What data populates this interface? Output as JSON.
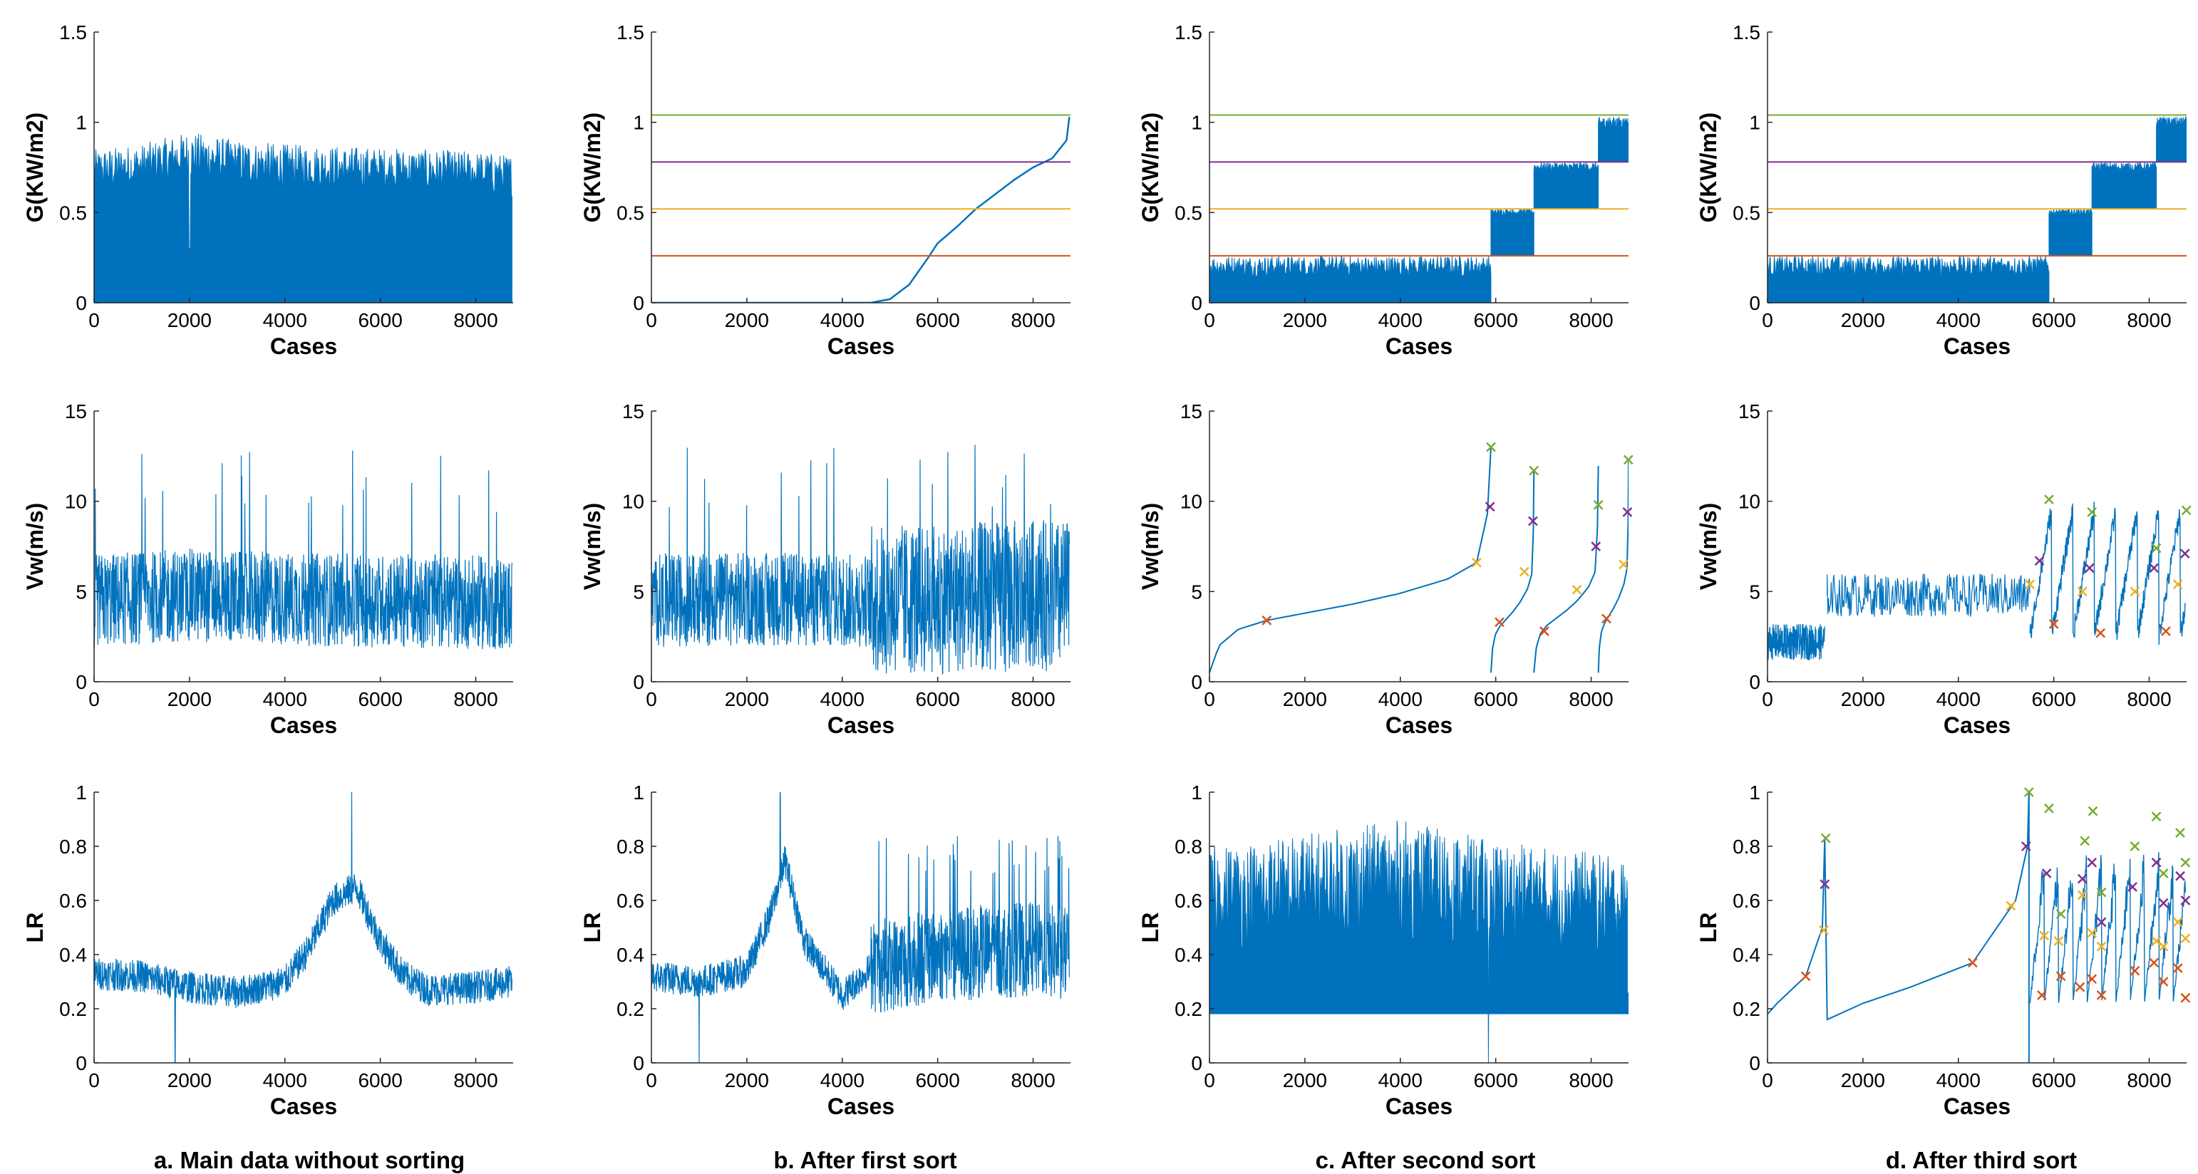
{
  "captions": [
    "a. Main data without sorting",
    "b. After first sort",
    "c. After second sort",
    "d. After third sort"
  ],
  "colors": {
    "series": "#0072BD",
    "red": "#D95319",
    "yellow": "#EDB120",
    "purple": "#7E2F8E",
    "green": "#77AC30",
    "axis": "#262626"
  },
  "chart_data": [
    {
      "type": "bar",
      "panel": "a",
      "row": 1,
      "xlabel": "Cases",
      "ylabel": "G(KW/m2)",
      "xlim": [
        0,
        8784
      ],
      "ylim": [
        0,
        1.5
      ],
      "xticks": [
        0,
        2000,
        4000,
        6000,
        8000
      ],
      "yticks": [
        0,
        0.5,
        1,
        1.5
      ],
      "series": [
        {
          "x": [
            0,
            1000,
            2000,
            3000,
            4000,
            5000,
            6000,
            7000,
            8000,
            8760
          ],
          "values": [
            0.85,
            0.88,
            0.95,
            0.9,
            0.88,
            0.87,
            0.86,
            0.85,
            0.84,
            0.82
          ]
        }
      ],
      "annotations": "dense daily bars from 0 up to the plotted envelope; dip near case 2000"
    },
    {
      "type": "line",
      "panel": "b",
      "row": 1,
      "xlabel": "Cases",
      "ylabel": "G(KW/m2)",
      "xlim": [
        0,
        8784
      ],
      "ylim": [
        0,
        1.5
      ],
      "xticks": [
        0,
        2000,
        4000,
        6000,
        8000
      ],
      "yticks": [
        0,
        0.5,
        1,
        1.5
      ],
      "series": [
        {
          "x": [
            0,
            4600,
            5000,
            5400,
            5800,
            6000,
            6400,
            6800,
            7200,
            7600,
            8000,
            8400,
            8700,
            8760
          ],
          "values": [
            0,
            0,
            0.02,
            0.1,
            0.25,
            0.33,
            0.42,
            0.52,
            0.6,
            0.68,
            0.75,
            0.8,
            0.9,
            1.03
          ]
        }
      ],
      "thresholds": [
        0.26,
        0.52,
        0.78,
        1.04
      ]
    },
    {
      "type": "bar",
      "panel": "c",
      "row": 1,
      "xlabel": "Cases",
      "ylabel": "G(KW/m2)",
      "xlim": [
        0,
        8784
      ],
      "ylim": [
        0,
        1.5
      ],
      "xticks": [
        0,
        2000,
        4000,
        6000,
        8000
      ],
      "yticks": [
        0,
        0.5,
        1,
        1.5
      ],
      "groups": [
        {
          "from": 0,
          "to": 5900,
          "low": 0,
          "high": 0.26
        },
        {
          "from": 5900,
          "to": 6800,
          "low": 0.26,
          "high": 0.52
        },
        {
          "from": 6800,
          "to": 8150,
          "low": 0.52,
          "high": 0.78
        },
        {
          "from": 8150,
          "to": 8784,
          "low": 0.78,
          "high": 1.03
        }
      ],
      "thresholds": [
        0.26,
        0.52,
        0.78,
        1.04
      ]
    },
    {
      "type": "bar",
      "panel": "d",
      "row": 1,
      "xlabel": "Cases",
      "ylabel": "G(KW/m2)",
      "xlim": [
        0,
        8784
      ],
      "ylim": [
        0,
        1.5
      ],
      "xticks": [
        0,
        2000,
        4000,
        6000,
        8000
      ],
      "yticks": [
        0,
        0.5,
        1,
        1.5
      ],
      "groups": [
        {
          "from": 0,
          "to": 5900,
          "low": 0,
          "high": 0.26
        },
        {
          "from": 5900,
          "to": 6800,
          "low": 0.26,
          "high": 0.52
        },
        {
          "from": 6800,
          "to": 8150,
          "low": 0.52,
          "high": 0.78
        },
        {
          "from": 8150,
          "to": 8784,
          "low": 0.78,
          "high": 1.03
        }
      ],
      "thresholds": [
        0.26,
        0.52,
        0.78,
        1.04
      ]
    },
    {
      "type": "line",
      "panel": "a",
      "row": 2,
      "xlabel": "Cases",
      "ylabel": "Vw(m/s)",
      "xlim": [
        0,
        8784
      ],
      "ylim": [
        0,
        15
      ],
      "xticks": [
        0,
        2000,
        4000,
        6000,
        8000
      ],
      "yticks": [
        0,
        5,
        10,
        15
      ],
      "series": [
        {
          "x": [
            0,
            2000,
            4000,
            6000,
            8000,
            8760
          ],
          "values": [
            4.5,
            4.8,
            4.6,
            4.5,
            4.4,
            4.3
          ]
        }
      ],
      "annotations": "noisy wind speed, range about 0.5 to 13"
    },
    {
      "type": "line",
      "panel": "b",
      "row": 2,
      "xlabel": "Cases",
      "ylabel": "Vw(m/s)",
      "xlim": [
        0,
        8784
      ],
      "ylim": [
        0,
        15
      ],
      "xticks": [
        0,
        2000,
        4000,
        6000,
        8000
      ],
      "yticks": [
        0,
        5,
        10,
        15
      ],
      "series": [
        {
          "x": [
            0,
            2000,
            4000,
            4600,
            6000,
            8000,
            8760
          ],
          "values": [
            4.5,
            4.6,
            4.5,
            4.5,
            4.6,
            4.8,
            4.7
          ]
        }
      ],
      "annotations": "spread widens after case 4600"
    },
    {
      "type": "line",
      "panel": "c",
      "row": 2,
      "xlabel": "Cases",
      "ylabel": "Vw(m/s)",
      "xlim": [
        0,
        8784
      ],
      "ylim": [
        0,
        15
      ],
      "xticks": [
        0,
        2000,
        4000,
        6000,
        8000
      ],
      "yticks": [
        0,
        5,
        10,
        15
      ],
      "series": [
        {
          "x": [
            0,
            200,
            600,
            1200,
            2000,
            3000,
            4000,
            5000,
            5600,
            5850,
            5900
          ],
          "values": [
            0.5,
            2.0,
            2.9,
            3.4,
            3.8,
            4.3,
            4.9,
            5.7,
            6.6,
            9.6,
            13.0
          ]
        }
      ],
      "segments": [
        [
          0,
          5900
        ],
        [
          5900,
          6800
        ],
        [
          6800,
          8150
        ],
        [
          8150,
          8784
        ]
      ],
      "markers": [
        {
          "x": 1200,
          "y": 3.4,
          "color": "red"
        },
        {
          "x": 5600,
          "y": 6.6,
          "color": "yellow"
        },
        {
          "x": 5880,
          "y": 9.7,
          "color": "purple"
        },
        {
          "x": 5900,
          "y": 13.0,
          "color": "green"
        },
        {
          "x": 6080,
          "y": 3.3,
          "color": "red"
        },
        {
          "x": 6600,
          "y": 6.1,
          "color": "yellow"
        },
        {
          "x": 6780,
          "y": 8.9,
          "color": "purple"
        },
        {
          "x": 6800,
          "y": 11.7,
          "color": "green"
        },
        {
          "x": 7020,
          "y": 2.8,
          "color": "red"
        },
        {
          "x": 7700,
          "y": 5.1,
          "color": "yellow"
        },
        {
          "x": 8100,
          "y": 7.5,
          "color": "purple"
        },
        {
          "x": 8150,
          "y": 9.8,
          "color": "green"
        },
        {
          "x": 8320,
          "y": 3.5,
          "color": "red"
        },
        {
          "x": 8680,
          "y": 6.5,
          "color": "yellow"
        },
        {
          "x": 8760,
          "y": 9.4,
          "color": "purple"
        },
        {
          "x": 8780,
          "y": 12.3,
          "color": "green"
        }
      ]
    },
    {
      "type": "line",
      "panel": "d",
      "row": 2,
      "xlabel": "Cases",
      "ylabel": "Vw(m/s)",
      "xlim": [
        0,
        8784
      ],
      "ylim": [
        0,
        15
      ],
      "xticks": [
        0,
        2000,
        4000,
        6000,
        8000
      ],
      "yticks": [
        0,
        5,
        10,
        15
      ],
      "series": [
        {
          "x": [
            0,
            1200,
            1250,
            5500,
            5550,
            5900
          ],
          "values": [
            2.2,
            2.2,
            4.8,
            4.8,
            7.9,
            7.9
          ]
        }
      ],
      "markers": [
        {
          "x": 5500,
          "y": 5.4,
          "color": "yellow"
        },
        {
          "x": 5700,
          "y": 6.7,
          "color": "purple"
        },
        {
          "x": 5900,
          "y": 10.1,
          "color": "green"
        },
        {
          "x": 6000,
          "y": 3.2,
          "color": "red"
        },
        {
          "x": 6600,
          "y": 5.0,
          "color": "yellow"
        },
        {
          "x": 6750,
          "y": 6.3,
          "color": "purple"
        },
        {
          "x": 6800,
          "y": 9.4,
          "color": "green"
        },
        {
          "x": 6980,
          "y": 2.7,
          "color": "red"
        },
        {
          "x": 7700,
          "y": 5.0,
          "color": "yellow"
        },
        {
          "x": 8100,
          "y": 6.3,
          "color": "purple"
        },
        {
          "x": 8150,
          "y": 7.4,
          "color": "green"
        },
        {
          "x": 8350,
          "y": 2.8,
          "color": "red"
        },
        {
          "x": 8600,
          "y": 5.4,
          "color": "yellow"
        },
        {
          "x": 8750,
          "y": 7.1,
          "color": "purple"
        },
        {
          "x": 8780,
          "y": 9.5,
          "color": "green"
        }
      ]
    },
    {
      "type": "line",
      "panel": "a",
      "row": 3,
      "xlabel": "Cases",
      "ylabel": "LR",
      "xlim": [
        0,
        8784
      ],
      "ylim": [
        0,
        1
      ],
      "xticks": [
        0,
        2000,
        4000,
        6000,
        8000
      ],
      "yticks": [
        0,
        0.2,
        0.4,
        0.6,
        0.8,
        1
      ],
      "series": [
        {
          "x": [
            0,
            1000,
            2000,
            3000,
            4000,
            4500,
            5000,
            5500,
            6000,
            6500,
            7000,
            8000,
            8760
          ],
          "values": [
            0.33,
            0.32,
            0.28,
            0.26,
            0.3,
            0.42,
            0.6,
            0.65,
            0.45,
            0.32,
            0.27,
            0.28,
            0.3
          ]
        }
      ],
      "annotations": "drop to 0 near case 1700; peak about 1.0 near case 5400"
    },
    {
      "type": "line",
      "panel": "b",
      "row": 3,
      "xlabel": "Cases",
      "ylabel": "LR",
      "xlim": [
        0,
        8784
      ],
      "ylim": [
        0,
        1
      ],
      "xticks": [
        0,
        2000,
        4000,
        6000,
        8000
      ],
      "yticks": [
        0,
        0.2,
        0.4,
        0.6,
        0.8,
        1
      ],
      "series": [
        {
          "x": [
            0,
            1000,
            2000,
            2500,
            2800,
            3200,
            4000,
            4600,
            6000,
            8000,
            8760
          ],
          "values": [
            0.32,
            0.3,
            0.34,
            0.55,
            0.75,
            0.45,
            0.25,
            0.35,
            0.4,
            0.42,
            0.4
          ]
        }
      ],
      "annotations": "drop to 0 near case 1000; peak about 1.0 near case 2700"
    },
    {
      "type": "bar",
      "panel": "c",
      "row": 3,
      "xlabel": "Cases",
      "ylabel": "LR",
      "xlim": [
        0,
        8784
      ],
      "ylim": [
        0,
        1
      ],
      "xticks": [
        0,
        2000,
        4000,
        6000,
        8000
      ],
      "yticks": [
        0,
        0.2,
        0.4,
        0.6,
        0.8,
        1
      ],
      "series": [
        {
          "x": [
            0,
            2000,
            4000,
            6000,
            8000,
            8760
          ],
          "values": [
            0.8,
            0.85,
            0.9,
            0.82,
            0.78,
            0.75
          ]
        }
      ],
      "annotations": "dense spikes from about 0.2 up to the envelope; drop to 0 near case 5850"
    },
    {
      "type": "line",
      "panel": "d",
      "row": 3,
      "xlabel": "Cases",
      "ylabel": "LR",
      "xlim": [
        0,
        8784
      ],
      "ylim": [
        0,
        1
      ],
      "xticks": [
        0,
        2000,
        4000,
        6000,
        8000
      ],
      "yticks": [
        0,
        0.2,
        0.4,
        0.6,
        0.8,
        1
      ],
      "series": [
        {
          "x": [
            0,
            200,
            800,
            1150,
            1200,
            1250,
            2000,
            3000,
            4300,
            5200,
            5450,
            5480
          ],
          "values": [
            0.18,
            0.22,
            0.32,
            0.5,
            0.83,
            0.16,
            0.22,
            0.28,
            0.37,
            0.6,
            0.8,
            1.0
          ]
        }
      ],
      "markers": [
        {
          "x": 800,
          "y": 0.32,
          "color": "red"
        },
        {
          "x": 1180,
          "y": 0.49,
          "color": "yellow"
        },
        {
          "x": 1200,
          "y": 0.66,
          "color": "purple"
        },
        {
          "x": 1220,
          "y": 0.83,
          "color": "green"
        },
        {
          "x": 4300,
          "y": 0.37,
          "color": "red"
        },
        {
          "x": 5100,
          "y": 0.58,
          "color": "yellow"
        },
        {
          "x": 5420,
          "y": 0.8,
          "color": "purple"
        },
        {
          "x": 5480,
          "y": 1.0,
          "color": "green"
        },
        {
          "x": 5750,
          "y": 0.25,
          "color": "red"
        },
        {
          "x": 5800,
          "y": 0.47,
          "color": "yellow"
        },
        {
          "x": 5850,
          "y": 0.7,
          "color": "purple"
        },
        {
          "x": 5900,
          "y": 0.94,
          "color": "green"
        },
        {
          "x": 6150,
          "y": 0.32,
          "color": "red"
        },
        {
          "x": 6100,
          "y": 0.45,
          "color": "yellow"
        },
        {
          "x": 6150,
          "y": 0.55,
          "color": "green"
        },
        {
          "x": 6550,
          "y": 0.28,
          "color": "red"
        },
        {
          "x": 6600,
          "y": 0.62,
          "color": "yellow"
        },
        {
          "x": 6600,
          "y": 0.68,
          "color": "purple"
        },
        {
          "x": 6650,
          "y": 0.82,
          "color": "green"
        },
        {
          "x": 6800,
          "y": 0.31,
          "color": "red"
        },
        {
          "x": 6800,
          "y": 0.48,
          "color": "yellow"
        },
        {
          "x": 6800,
          "y": 0.74,
          "color": "purple"
        },
        {
          "x": 6820,
          "y": 0.93,
          "color": "green"
        },
        {
          "x": 7000,
          "y": 0.25,
          "color": "red"
        },
        {
          "x": 7000,
          "y": 0.43,
          "color": "yellow"
        },
        {
          "x": 7000,
          "y": 0.52,
          "color": "purple"
        },
        {
          "x": 7000,
          "y": 0.63,
          "color": "green"
        },
        {
          "x": 7700,
          "y": 0.34,
          "color": "red"
        },
        {
          "x": 7650,
          "y": 0.65,
          "color": "purple"
        },
        {
          "x": 7700,
          "y": 0.8,
          "color": "green"
        },
        {
          "x": 8100,
          "y": 0.37,
          "color": "red"
        },
        {
          "x": 8150,
          "y": 0.45,
          "color": "yellow"
        },
        {
          "x": 8150,
          "y": 0.74,
          "color": "purple"
        },
        {
          "x": 8150,
          "y": 0.91,
          "color": "green"
        },
        {
          "x": 8300,
          "y": 0.3,
          "color": "red"
        },
        {
          "x": 8300,
          "y": 0.43,
          "color": "yellow"
        },
        {
          "x": 8300,
          "y": 0.59,
          "color": "purple"
        },
        {
          "x": 8300,
          "y": 0.7,
          "color": "green"
        },
        {
          "x": 8600,
          "y": 0.35,
          "color": "red"
        },
        {
          "x": 8600,
          "y": 0.52,
          "color": "yellow"
        },
        {
          "x": 8650,
          "y": 0.69,
          "color": "purple"
        },
        {
          "x": 8650,
          "y": 0.85,
          "color": "green"
        },
        {
          "x": 8760,
          "y": 0.24,
          "color": "red"
        },
        {
          "x": 8760,
          "y": 0.46,
          "color": "yellow"
        },
        {
          "x": 8760,
          "y": 0.6,
          "color": "purple"
        },
        {
          "x": 8760,
          "y": 0.74,
          "color": "green"
        }
      ]
    }
  ]
}
